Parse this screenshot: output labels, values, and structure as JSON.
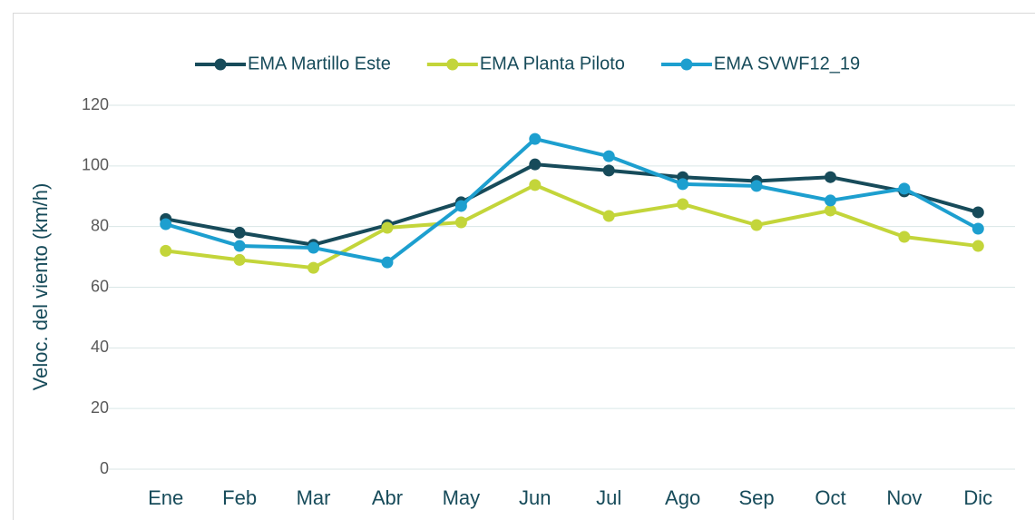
{
  "chart_data": {
    "type": "line",
    "y_label": "Veloc. del viento (km/h)",
    "categories": [
      "Ene",
      "Feb",
      "Mar",
      "Abr",
      "May",
      "Jun",
      "Jul",
      "Ago",
      "Sep",
      "Oct",
      "Nov",
      "Dic"
    ],
    "series": [
      {
        "name": "EMA Martillo Este",
        "color": "#174b5a",
        "values": [
          82.5,
          78,
          74,
          80.5,
          88,
          100.5,
          98.5,
          96.3,
          95,
          96.3,
          91.6,
          84.7
        ]
      },
      {
        "name": "EMA Planta Piloto",
        "color": "#c3d53a",
        "values": [
          72,
          69,
          66.4,
          79.6,
          81.4,
          93.7,
          83.5,
          87.4,
          80.5,
          85.3,
          76.6,
          73.6
        ]
      },
      {
        "name": "EMA SVWF12_19",
        "color": "#1d9fcf",
        "values": [
          80.8,
          73.6,
          73,
          68.2,
          86.8,
          108.9,
          103.2,
          94,
          93.4,
          88.6,
          92.5,
          79.3
        ]
      }
    ],
    "ylim": [
      0,
      120
    ],
    "yticks": [
      0,
      20,
      40,
      60,
      80,
      100,
      120
    ],
    "grid": true,
    "legend": "top"
  }
}
